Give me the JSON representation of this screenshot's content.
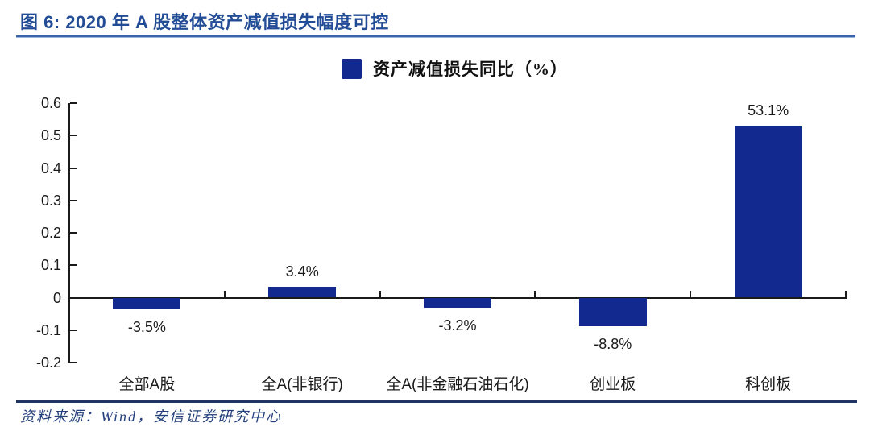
{
  "header": {
    "title": "图 6: 2020 年 A 股整体资产减值损失幅度可控"
  },
  "chart_data": {
    "type": "bar",
    "title": "",
    "legend": "资产减值损失同比（%）",
    "legend_position": "top-center",
    "categories": [
      "全部A股",
      "全A(非银行)",
      "全A(非金融石油石化)",
      "创业板",
      "科创板"
    ],
    "values_percent": [
      -3.5,
      3.4,
      -3.2,
      -8.8,
      53.1
    ],
    "data_labels": [
      "-3.5%",
      "3.4%",
      "-3.2%",
      "-8.8%",
      "53.1%"
    ],
    "xlabel": "",
    "ylabel": "",
    "ylim": [
      -0.2,
      0.6
    ],
    "yticks": [
      0.6,
      0.5,
      0.4,
      0.3,
      0.2,
      0.1,
      0,
      -0.1,
      -0.2
    ],
    "ytick_labels": [
      "0.6",
      "0.5",
      "0.4",
      "0.3",
      "0.2",
      "0.1",
      "0",
      "-0.1",
      "-0.2"
    ],
    "axis_unit_note": "y axis in fractions, data labels in percent",
    "grid": false,
    "bar_color": "#12298F"
  },
  "footer": {
    "source": "资料来源：Wind，安信证券研究中心"
  },
  "colors": {
    "bar_blue": "#12298F",
    "title_blue": "#224C96",
    "title_rule_blue": "#3A64A8",
    "footer_rule_navy": "#1E3566",
    "footer_text_navy": "#24407C",
    "axis_black": "#1A1A1A"
  }
}
